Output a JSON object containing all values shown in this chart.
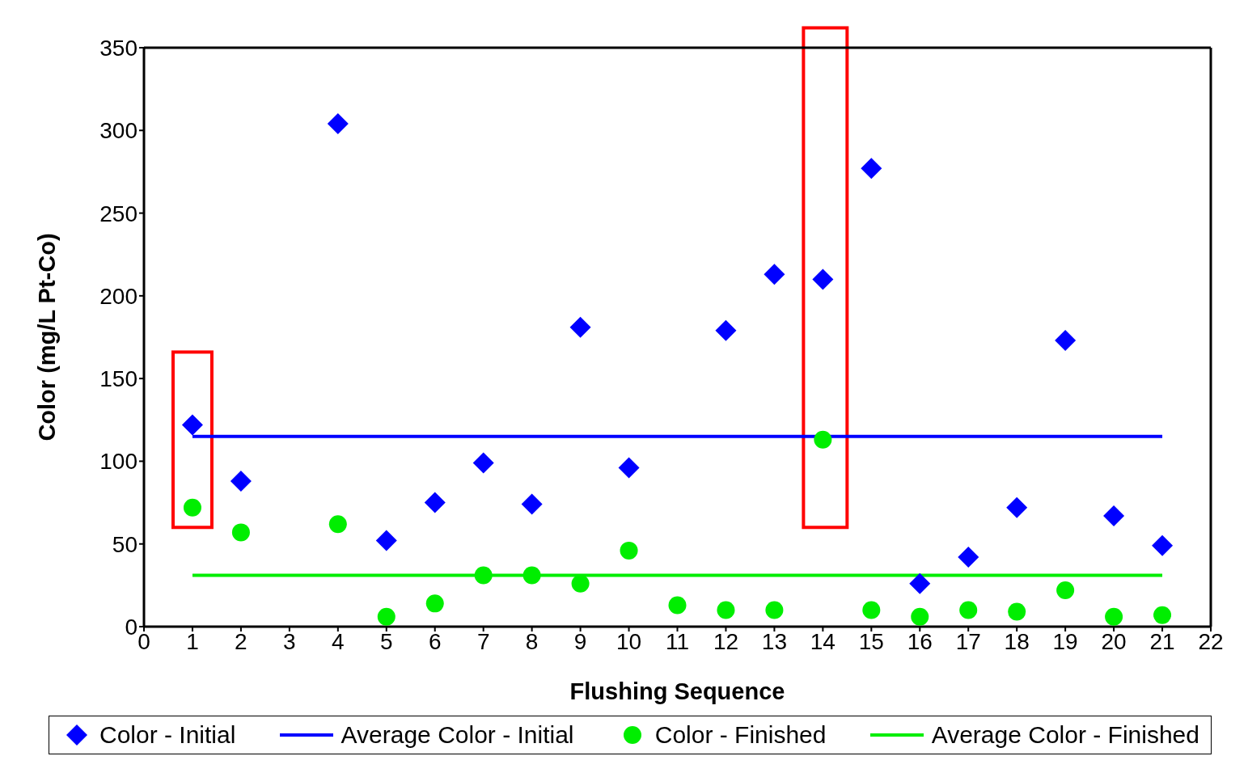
{
  "chart_data": {
    "type": "scatter",
    "xlabel": "Flushing Sequence",
    "ylabel": "Color (mg/L Pt-Co)",
    "xlim": [
      0,
      22
    ],
    "xticks": [
      0,
      1,
      2,
      3,
      4,
      5,
      6,
      7,
      8,
      9,
      10,
      11,
      12,
      13,
      14,
      15,
      16,
      17,
      18,
      19,
      20,
      21,
      22
    ],
    "ylim": [
      0,
      350
    ],
    "yticks": [
      0,
      50,
      100,
      150,
      200,
      250,
      300,
      350
    ],
    "grid": false,
    "legend": "bottom",
    "series": [
      {
        "name": "Color - Initial",
        "type": "scatter",
        "marker": "diamond",
        "color": "#0000ff",
        "x": [
          1,
          2,
          4,
          5,
          6,
          7,
          8,
          9,
          10,
          11,
          12,
          13,
          14,
          15,
          16,
          17,
          18,
          19,
          20,
          21
        ],
        "values": [
          122,
          88,
          304,
          52,
          75,
          99,
          74,
          181,
          96,
          null,
          179,
          213,
          210,
          277,
          26,
          42,
          72,
          173,
          67,
          49
        ]
      },
      {
        "name": "Average Color - Initial",
        "type": "line",
        "marker": "none",
        "color": "#0000ff",
        "x": [
          1,
          21
        ],
        "values": [
          115,
          115
        ]
      },
      {
        "name": "Color - Finished",
        "type": "scatter",
        "marker": "circle",
        "color": "#00ee00",
        "x": [
          1,
          2,
          4,
          5,
          6,
          7,
          8,
          9,
          10,
          11,
          12,
          13,
          14,
          15,
          16,
          17,
          18,
          19,
          20,
          21
        ],
        "values": [
          72,
          57,
          62,
          6,
          14,
          31,
          31,
          26,
          46,
          13,
          10,
          10,
          113,
          10,
          6,
          10,
          9,
          22,
          6,
          7
        ]
      },
      {
        "name": "Average Color - Finished",
        "type": "line",
        "marker": "none",
        "color": "#00ee00",
        "x": [
          1,
          21
        ],
        "values": [
          31,
          31
        ]
      }
    ]
  }
}
